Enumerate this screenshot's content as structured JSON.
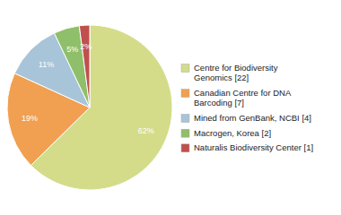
{
  "chart_data": {
    "type": "pie",
    "categories": [
      "Centre for Biodiversity\nGenomics [22]",
      "Canadian Centre for DNA\nBarcoding [7]",
      "Mined from GenBank, NCBI [4]",
      "Macrogen, Korea [2]",
      "Naturalis Biodiversity Center [1]"
    ],
    "values": [
      62,
      19,
      11,
      5,
      2
    ],
    "value_labels": [
      "62%",
      "19%",
      "11%",
      "5%",
      "2%"
    ],
    "colors": [
      "#d4dc8a",
      "#f0a050",
      "#a8c4d8",
      "#8fbf6a",
      "#c0504d"
    ],
    "data_labels": true,
    "legend": "right"
  }
}
